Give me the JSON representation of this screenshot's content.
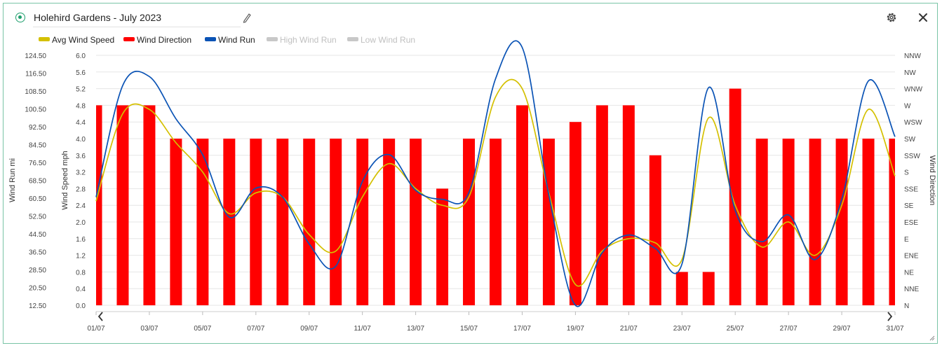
{
  "header": {
    "title": "Holehird Gardens - July 2023",
    "edit_icon": "pencil-icon",
    "settings_icon": "gear-icon",
    "close_icon": "close-icon"
  },
  "colors": {
    "avg_wind_speed": "#d4c000",
    "wind_direction": "#ff0000",
    "wind_run": "#0a53b5",
    "inactive": "#c8c8c8",
    "accent": "#1f9f6d"
  },
  "legend": [
    {
      "label": "Avg Wind Speed",
      "active": true
    },
    {
      "label": "Wind Direction",
      "active": true
    },
    {
      "label": "Wind Run",
      "active": true
    },
    {
      "label": "High Wind Run",
      "active": false
    },
    {
      "label": "Low Wind Run",
      "active": false
    }
  ],
  "navigation": {
    "prev_icon": "chevron-left-icon",
    "next_icon": "chevron-right-icon"
  },
  "chart_data": {
    "type": "bar+line",
    "title": "Holehird Gardens - July 2023",
    "grid": true,
    "legend_position": "top-left",
    "x": [
      "01/07",
      "02/07",
      "03/07",
      "04/07",
      "05/07",
      "06/07",
      "07/07",
      "08/07",
      "09/07",
      "10/07",
      "11/07",
      "12/07",
      "13/07",
      "14/07",
      "15/07",
      "16/07",
      "17/07",
      "18/07",
      "19/07",
      "20/07",
      "21/07",
      "22/07",
      "23/07",
      "24/07",
      "25/07",
      "26/07",
      "27/07",
      "28/07",
      "29/07",
      "30/07",
      "31/07"
    ],
    "x_tick_labels": [
      "01/07",
      "03/07",
      "05/07",
      "07/07",
      "09/07",
      "11/07",
      "13/07",
      "15/07",
      "17/07",
      "19/07",
      "21/07",
      "23/07",
      "25/07",
      "27/07",
      "29/07",
      "31/07"
    ],
    "axes": {
      "wind_run": {
        "label": "Wind Run mi",
        "range": [
          12.5,
          124.5
        ],
        "ticks": [
          "124.50",
          "116.50",
          "108.50",
          "100.50",
          "92.50",
          "84.50",
          "76.50",
          "68.50",
          "60.50",
          "52.50",
          "44.50",
          "36.50",
          "28.50",
          "20.50",
          "12.50"
        ]
      },
      "wind_speed": {
        "label": "Wind Speed mph",
        "range": [
          0,
          6
        ],
        "ticks": [
          "6.0",
          "5.6",
          "5.2",
          "4.8",
          "4.4",
          "4.0",
          "3.6",
          "3.2",
          "2.8",
          "2.4",
          "2.0",
          "1.6",
          "1.2",
          "0.8",
          "0.4",
          "0.0"
        ]
      },
      "wind_direction": {
        "label": "Wind Direction",
        "ticks": [
          "NNW",
          "NW",
          "WNW",
          "W",
          "WSW",
          "SW",
          "SSW",
          "S",
          "SSE",
          "SE",
          "ESE",
          "E",
          "ENE",
          "NE",
          "NNE",
          "N"
        ]
      }
    },
    "series": [
      {
        "name": "Wind Direction",
        "type": "bar",
        "axis": "wind_direction",
        "values": [
          "W",
          "W",
          "W",
          "SW",
          "SW",
          "SW",
          "SW",
          "SW",
          "SW",
          "SW",
          "SW",
          "SW",
          "SW",
          "SSE",
          "SW",
          "SW",
          "W",
          "SW",
          "WSW",
          "W",
          "W",
          "SSW",
          "NE",
          "NE",
          "WNW",
          "SW",
          "SW",
          "SW",
          "SW",
          "SW",
          "SW"
        ]
      },
      {
        "name": "Avg Wind Speed",
        "type": "line",
        "axis": "wind_speed",
        "values": [
          2.5,
          4.6,
          4.7,
          3.9,
          3.2,
          2.2,
          2.7,
          2.6,
          1.7,
          1.3,
          2.6,
          3.4,
          2.8,
          2.4,
          2.6,
          5.0,
          5.2,
          2.7,
          0.5,
          1.3,
          1.6,
          1.5,
          1.1,
          4.5,
          2.4,
          1.4,
          2.0,
          1.2,
          2.4,
          4.7,
          3.1
        ]
      },
      {
        "name": "Wind Run",
        "type": "line",
        "axis": "wind_run",
        "values": [
          61,
          111,
          115,
          96,
          80,
          52,
          65,
          61,
          40,
          30,
          68,
          80,
          64,
          60,
          63,
          114,
          128,
          62,
          12.5,
          36,
          44,
          38,
          31,
          110,
          55,
          41,
          53,
          33,
          60,
          113,
          88
        ]
      }
    ]
  }
}
